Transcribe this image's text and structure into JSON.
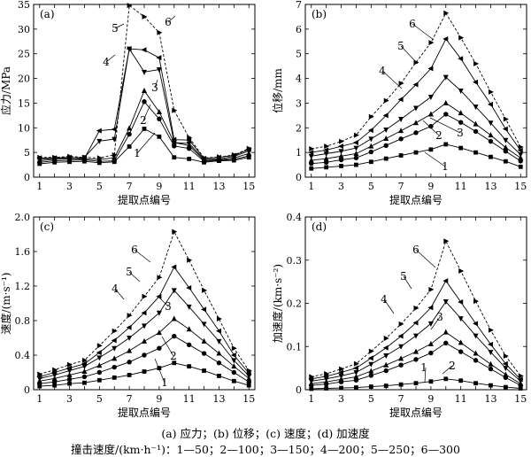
{
  "caption": {
    "line1": "(a) 应力；(b) 位移；(c) 速度；(d) 加速度",
    "line2": "撞击速度/(km·h⁻¹)：1—50；2—100；3—150；4—200；5—250；6—300"
  },
  "chart_data": [
    {
      "panel": "(a)",
      "type": "line",
      "xlabel": "提取点编号",
      "ylabel": "应力/MPa",
      "x": [
        1,
        2,
        3,
        4,
        5,
        6,
        7,
        8,
        9,
        10,
        11,
        12,
        13,
        14,
        15
      ],
      "xticks": [
        "1",
        "3",
        "5",
        "7",
        "9",
        "11",
        "13",
        "15"
      ],
      "ylim": [
        0,
        35
      ],
      "yticks": [
        "0",
        "5",
        "10",
        "15",
        "20",
        "25",
        "30",
        "35"
      ],
      "series": [
        {
          "name": "1",
          "values": [
            2.7,
            3.0,
            3.1,
            3.2,
            2.9,
            3.1,
            6.2,
            9.8,
            8.2,
            4.0,
            3.7,
            3.0,
            3.3,
            3.4,
            4.0
          ]
        },
        {
          "name": "2",
          "values": [
            3.0,
            3.3,
            3.4,
            3.5,
            3.2,
            3.3,
            8.7,
            15.3,
            11.8,
            6.3,
            5.8,
            3.2,
            3.4,
            3.6,
            4.3
          ]
        },
        {
          "name": "3",
          "values": [
            3.3,
            3.6,
            3.7,
            3.7,
            3.6,
            3.9,
            9.9,
            17.5,
            13.2,
            7.0,
            6.4,
            3.4,
            3.5,
            3.9,
            4.8
          ]
        },
        {
          "name": "4",
          "values": [
            3.6,
            3.8,
            3.9,
            4.0,
            7.3,
            7.7,
            26.0,
            21.3,
            21.8,
            7.0,
            6.8,
            3.6,
            3.7,
            4.2,
            5.3
          ]
        },
        {
          "name": "5",
          "values": [
            3.9,
            3.9,
            4.0,
            3.8,
            9.4,
            9.7,
            26.0,
            25.8,
            24.2,
            7.6,
            7.5,
            3.8,
            4.0,
            4.4,
            5.6
          ]
        },
        {
          "name": "6",
          "values": [
            4.0,
            4.0,
            4.2,
            4.0,
            3.9,
            4.5,
            34.8,
            32.5,
            29.3,
            13.5,
            8.0,
            3.9,
            4.1,
            4.5,
            5.8
          ]
        }
      ],
      "series_labels": [
        "1",
        "2",
        "3",
        "4",
        "5",
        "6"
      ]
    },
    {
      "panel": "(b)",
      "type": "line",
      "xlabel": "提取点编号",
      "ylabel": "位移/mm",
      "x": [
        1,
        2,
        3,
        4,
        5,
        6,
        7,
        8,
        9,
        10,
        11,
        12,
        13,
        14,
        15
      ],
      "xticks": [
        "1",
        "3",
        "5",
        "7",
        "9",
        "11",
        "13",
        "15"
      ],
      "ylim": [
        0,
        7
      ],
      "yticks": [
        "0",
        "1",
        "2",
        "3",
        "4",
        "5",
        "6",
        "7"
      ],
      "series": [
        {
          "name": "1",
          "values": [
            0.35,
            0.4,
            0.45,
            0.5,
            0.62,
            0.75,
            0.88,
            1.0,
            1.12,
            1.33,
            1.18,
            1.0,
            0.82,
            0.64,
            0.42
          ]
        },
        {
          "name": "2",
          "values": [
            0.55,
            0.6,
            0.7,
            0.78,
            1.02,
            1.28,
            1.55,
            1.8,
            2.06,
            2.55,
            2.22,
            1.85,
            1.45,
            1.05,
            0.65
          ]
        },
        {
          "name": "3",
          "values": [
            0.68,
            0.75,
            0.85,
            0.95,
            1.25,
            1.56,
            1.88,
            2.2,
            2.55,
            3.0,
            2.6,
            2.15,
            1.7,
            1.2,
            0.78
          ]
        },
        {
          "name": "4",
          "values": [
            0.85,
            0.95,
            1.05,
            1.18,
            1.55,
            1.92,
            2.35,
            2.8,
            3.25,
            4.05,
            3.5,
            2.85,
            2.2,
            1.5,
            0.92
          ]
        },
        {
          "name": "5",
          "values": [
            1.0,
            1.1,
            1.25,
            1.4,
            1.9,
            2.5,
            3.15,
            3.75,
            4.4,
            5.6,
            4.8,
            3.85,
            2.95,
            1.95,
            1.08
          ]
        },
        {
          "name": "6",
          "values": [
            1.15,
            1.25,
            1.45,
            1.7,
            2.45,
            3.1,
            3.8,
            4.65,
            5.45,
            6.65,
            5.65,
            4.6,
            3.45,
            2.35,
            1.22
          ]
        }
      ],
      "series_labels": [
        "1",
        "2",
        "3",
        "4",
        "5",
        "6"
      ]
    },
    {
      "panel": "(c)",
      "type": "line",
      "xlabel": "提取点编号",
      "ylabel": "速度/(m·s⁻¹)",
      "x": [
        1,
        2,
        3,
        4,
        5,
        6,
        7,
        8,
        9,
        10,
        11,
        12,
        13,
        14,
        15
      ],
      "xticks": [
        "1",
        "3",
        "5",
        "7",
        "9",
        "11",
        "13",
        "15"
      ],
      "ylim": [
        0,
        2.0
      ],
      "yticks": [
        "0",
        "0.4",
        "0.8",
        "1.2",
        "1.6",
        "2.0"
      ],
      "series": [
        {
          "name": "1",
          "values": [
            0.04,
            0.05,
            0.07,
            0.08,
            0.11,
            0.14,
            0.17,
            0.21,
            0.25,
            0.31,
            0.27,
            0.22,
            0.16,
            0.1,
            0.05
          ]
        },
        {
          "name": "2",
          "values": [
            0.07,
            0.09,
            0.12,
            0.15,
            0.2,
            0.26,
            0.32,
            0.4,
            0.48,
            0.62,
            0.52,
            0.42,
            0.31,
            0.2,
            0.09
          ]
        },
        {
          "name": "3",
          "values": [
            0.1,
            0.13,
            0.17,
            0.21,
            0.28,
            0.36,
            0.45,
            0.56,
            0.66,
            0.82,
            0.7,
            0.56,
            0.42,
            0.27,
            0.13
          ]
        },
        {
          "name": "4",
          "values": [
            0.13,
            0.17,
            0.22,
            0.27,
            0.37,
            0.48,
            0.6,
            0.74,
            0.89,
            1.15,
            0.96,
            0.76,
            0.56,
            0.34,
            0.16
          ]
        },
        {
          "name": "5",
          "values": [
            0.15,
            0.2,
            0.25,
            0.3,
            0.43,
            0.57,
            0.72,
            0.89,
            1.08,
            1.42,
            1.18,
            0.93,
            0.68,
            0.4,
            0.19
          ]
        },
        {
          "name": "6",
          "values": [
            0.18,
            0.23,
            0.29,
            0.34,
            0.51,
            0.68,
            0.86,
            1.08,
            1.3,
            1.83,
            1.5,
            1.15,
            0.82,
            0.48,
            0.22
          ]
        }
      ],
      "series_labels": [
        "1",
        "2",
        "3",
        "4",
        "5",
        "6"
      ]
    },
    {
      "panel": "(d)",
      "type": "line",
      "xlabel": "提取点编号",
      "ylabel": "加速度/(km·s⁻²)",
      "x": [
        1,
        2,
        3,
        4,
        5,
        6,
        7,
        8,
        9,
        10,
        11,
        12,
        13,
        14,
        15
      ],
      "xticks": [
        "1",
        "3",
        "5",
        "7",
        "9",
        "11",
        "13",
        "15"
      ],
      "ylim": [
        0,
        0.4
      ],
      "yticks": [
        "0",
        "0.1",
        "0.2",
        "0.3",
        "0.4"
      ],
      "series": [
        {
          "name": "1",
          "values": [
            0.002,
            0.003,
            0.004,
            0.005,
            0.007,
            0.009,
            0.012,
            0.015,
            0.019,
            0.025,
            0.021,
            0.015,
            0.01,
            0.006,
            0.003
          ]
        },
        {
          "name": "2",
          "values": [
            0.01,
            0.013,
            0.018,
            0.022,
            0.033,
            0.044,
            0.057,
            0.07,
            0.085,
            0.108,
            0.088,
            0.068,
            0.048,
            0.028,
            0.01
          ]
        },
        {
          "name": "3",
          "values": [
            0.014,
            0.018,
            0.024,
            0.03,
            0.043,
            0.057,
            0.072,
            0.088,
            0.106,
            0.133,
            0.109,
            0.084,
            0.059,
            0.035,
            0.014
          ]
        },
        {
          "name": "4",
          "values": [
            0.02,
            0.025,
            0.032,
            0.04,
            0.059,
            0.079,
            0.1,
            0.125,
            0.153,
            0.204,
            0.165,
            0.125,
            0.087,
            0.05,
            0.02
          ]
        },
        {
          "name": "5",
          "values": [
            0.025,
            0.031,
            0.04,
            0.05,
            0.073,
            0.097,
            0.124,
            0.155,
            0.19,
            0.252,
            0.203,
            0.153,
            0.105,
            0.06,
            0.024
          ]
        },
        {
          "name": "6",
          "values": [
            0.03,
            0.037,
            0.048,
            0.06,
            0.089,
            0.119,
            0.152,
            0.189,
            0.232,
            0.344,
            0.275,
            0.205,
            0.138,
            0.078,
            0.032
          ]
        }
      ],
      "series_labels": [
        "1",
        "2",
        "3",
        "4",
        "5",
        "6"
      ]
    }
  ]
}
